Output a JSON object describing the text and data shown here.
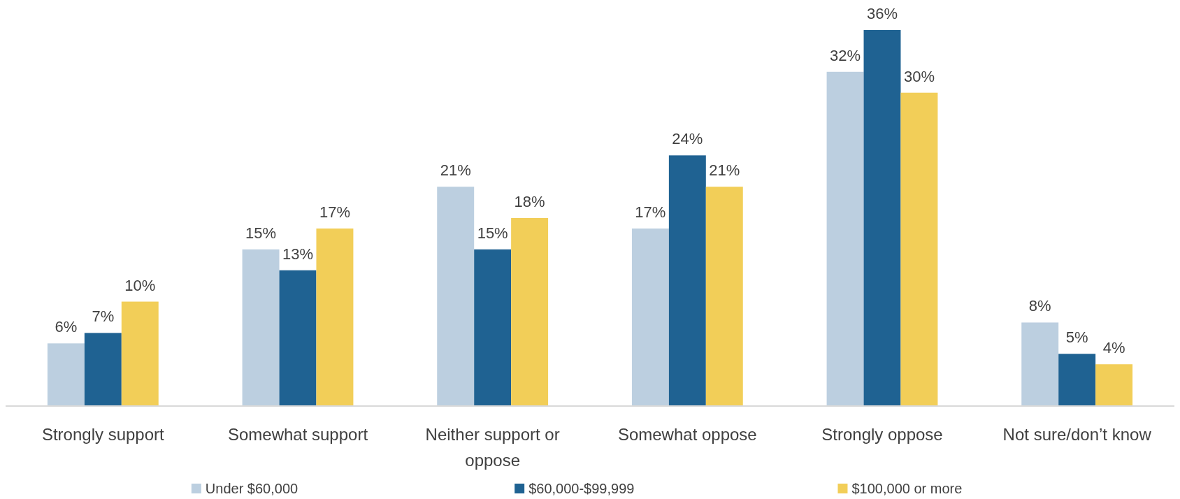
{
  "chart_data": {
    "type": "bar",
    "categories": [
      "Strongly support",
      "Somewhat support",
      "Neither support or oppose",
      "Somewhat oppose",
      "Strongly oppose",
      "Not sure/don’t know"
    ],
    "series": [
      {
        "name": "Under $60,000",
        "color": "#bccfe0",
        "values": [
          6,
          15,
          21,
          17,
          32,
          8
        ],
        "value_labels": [
          "6%",
          "15%",
          "21%",
          "17%",
          "32%",
          "8%"
        ]
      },
      {
        "name": "$60,000-$99,999",
        "color": "#1f6292",
        "values": [
          7,
          13,
          15,
          24,
          36,
          5
        ],
        "value_labels": [
          "7%",
          "13%",
          "15%",
          "24%",
          "36%",
          "5%"
        ]
      },
      {
        "name": "$100,000 or more",
        "color": "#f2ce58",
        "values": [
          10,
          17,
          18,
          21,
          30,
          4
        ],
        "value_labels": [
          "10%",
          "17%",
          "18%",
          "21%",
          "30%",
          "4%"
        ]
      }
    ],
    "legend": "bottom"
  }
}
